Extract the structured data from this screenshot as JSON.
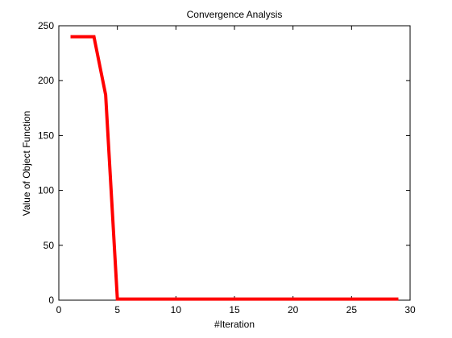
{
  "chart_data": {
    "type": "line",
    "title": "Convergence Analysis",
    "xlabel": "#Iteration",
    "ylabel": "Value of Object Function",
    "xlim": [
      0,
      30
    ],
    "ylim": [
      0,
      250
    ],
    "xticks": [
      0,
      5,
      10,
      15,
      20,
      25,
      30
    ],
    "yticks": [
      0,
      50,
      100,
      150,
      200,
      250
    ],
    "grid": false,
    "series": [
      {
        "color": "#ff0000",
        "x": [
          1,
          2,
          3,
          4,
          5,
          6,
          7,
          8,
          9,
          10,
          11,
          12,
          13,
          14,
          15,
          16,
          17,
          18,
          19,
          20,
          21,
          22,
          23,
          24,
          25,
          26,
          27,
          28,
          29
        ],
        "y": [
          240,
          240,
          240,
          187,
          1,
          1,
          1,
          1,
          1,
          1,
          1,
          1,
          1,
          1,
          1,
          1,
          1,
          1,
          1,
          1,
          1,
          1,
          1,
          1,
          1,
          1,
          1,
          1,
          1
        ]
      }
    ]
  }
}
